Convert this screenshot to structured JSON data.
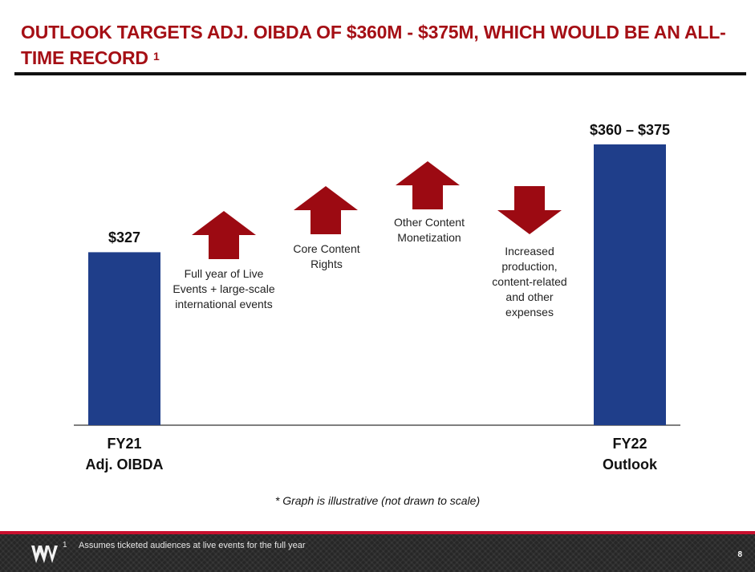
{
  "header": {
    "title": "OUTLOOK TARGETS ADJ. OIBDA OF $360M - $375M, WHICH WOULD BE AN ALL-TIME RECORD",
    "title_footnote_ref": "1"
  },
  "chart_data": {
    "type": "bar",
    "title": "",
    "xlabel": "",
    "ylabel": "",
    "illustrative": true,
    "bars": [
      {
        "category_line1": "FY21",
        "category_line2": "Adj. OIBDA",
        "value_low": 327,
        "value_high": 327,
        "label": "$327"
      },
      {
        "category_line1": "FY22",
        "category_line2": "Outlook",
        "value_low": 360,
        "value_high": 375,
        "label": "$360 – $375"
      }
    ],
    "drivers": [
      {
        "direction": "up",
        "label": "Full year of Live Events + large-scale international events"
      },
      {
        "direction": "up",
        "label": "Core Content Rights"
      },
      {
        "direction": "up",
        "label": "Other Content Monetization"
      },
      {
        "direction": "down",
        "label": "Increased production, content-related and other expenses"
      }
    ],
    "note": "* Graph is illustrative (not drawn to scale)"
  },
  "footer": {
    "footnote_number": "1",
    "footnote_text": "Assumes ticketed audiences at live events for the full year",
    "page_number": "8",
    "logo_icon": "wwe-logo-icon"
  },
  "colors": {
    "title": "#a50f15",
    "bar": "#1f3e8a",
    "arrow": "#9c0a12",
    "footer_stripe": "#c8102e"
  }
}
